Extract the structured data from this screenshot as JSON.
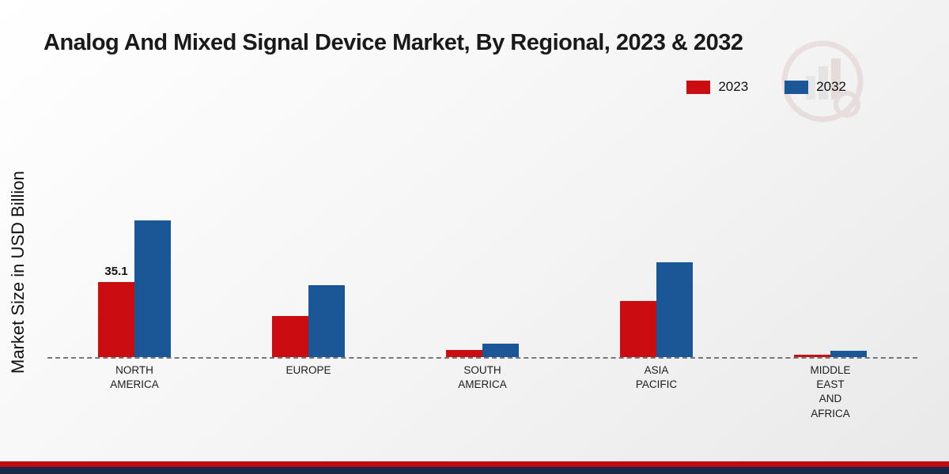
{
  "title": "Analog And Mixed Signal Device Market, By Regional, 2023 & 2032",
  "ylabel": "Market Size in USD Billion",
  "legend": {
    "items": [
      {
        "label": "2023",
        "color": "#c90d10"
      },
      {
        "label": "2032",
        "color": "#1b5796"
      }
    ]
  },
  "colors": {
    "red_2023": "#c90d10",
    "blue_2032": "#1b5796",
    "footer_red": "#c10b10",
    "footer_navy": "#16294b"
  },
  "chart_data": {
    "type": "bar",
    "title": "Analog And Mixed Signal Device Market, By Regional, 2023 & 2032",
    "xlabel": "",
    "ylabel": "Market Size in USD Billion",
    "ylim": [
      0,
      100
    ],
    "grid": false,
    "legend_position": "top-right",
    "baseline_style": "dashed",
    "categories": [
      "North America",
      "Europe",
      "South America",
      "Asia Pacific",
      "Middle East and Africa"
    ],
    "category_lines": [
      [
        "NORTH",
        "AMERICA"
      ],
      [
        "EUROPE"
      ],
      [
        "SOUTH",
        "AMERICA"
      ],
      [
        "ASIA",
        "PACIFIC"
      ],
      [
        "MIDDLE",
        "EAST",
        "AND",
        "AFRICA"
      ]
    ],
    "series": [
      {
        "name": "2023",
        "color": "#c90d10",
        "values": [
          35.1,
          19.0,
          3.2,
          26.0,
          1.2
        ]
      },
      {
        "name": "2032",
        "color": "#1b5796",
        "values": [
          63.5,
          33.5,
          6.2,
          44.0,
          3.0
        ]
      }
    ],
    "annotations": [
      {
        "category_index": 0,
        "series_index": 0,
        "text": "35.1"
      }
    ]
  }
}
